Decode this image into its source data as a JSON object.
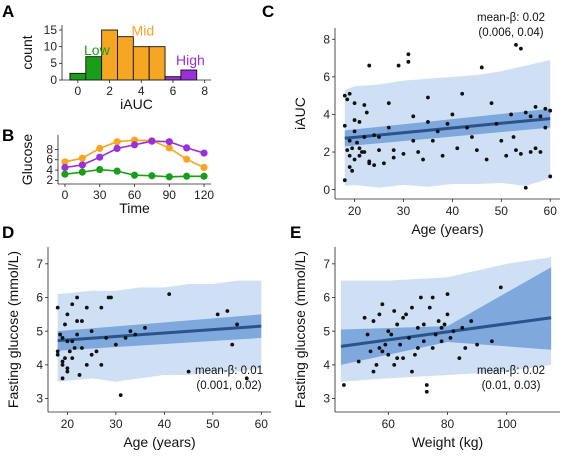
{
  "colors": {
    "low": "#1a9e1a",
    "mid": "#f5a623",
    "high": "#9b30d9",
    "ci_inner": "#7fa8dc",
    "pi_outer": "#cfe0f4",
    "fit": "#2c528a",
    "point": "#111111"
  },
  "chart_data": [
    {
      "panel": "A",
      "type": "bar",
      "xlabel": "iAUC",
      "ylabel": "count",
      "xlim": [
        -1,
        8.4
      ],
      "ylim": [
        0,
        16.5
      ],
      "xticks": [
        0,
        2,
        4,
        6,
        8
      ],
      "yticks": [
        0,
        5,
        10,
        15
      ],
      "group_labels": [
        {
          "text": "Low",
          "color_key": "low",
          "x": 1.2,
          "y": 7.5
        },
        {
          "text": "Mid",
          "color_key": "mid",
          "x": 4.1,
          "y": 13.3
        },
        {
          "text": "High",
          "color_key": "high",
          "x": 7.1,
          "y": 4.5
        }
      ],
      "bars": [
        {
          "x0": -0.5,
          "x1": 0.5,
          "value": 2,
          "group": "low"
        },
        {
          "x0": 0.5,
          "x1": 1.5,
          "value": 7,
          "group": "low"
        },
        {
          "x0": 1.5,
          "x1": 2.5,
          "value": 15,
          "group": "mid"
        },
        {
          "x0": 2.5,
          "x1": 3.5,
          "value": 13,
          "group": "mid"
        },
        {
          "x0": 3.5,
          "x1": 4.5,
          "value": 10,
          "group": "mid"
        },
        {
          "x0": 4.5,
          "x1": 5.5,
          "value": 10,
          "group": "mid"
        },
        {
          "x0": 5.5,
          "x1": 6.5,
          "value": 1,
          "group": "high"
        },
        {
          "x0": 6.5,
          "x1": 7.5,
          "value": 3,
          "group": "high"
        }
      ]
    },
    {
      "panel": "B",
      "type": "line",
      "xlabel": "Time",
      "ylabel": "Glucose",
      "xlim": [
        -6,
        126
      ],
      "ylim": [
        1.3,
        10.8
      ],
      "xticks": [
        0,
        30,
        60,
        90,
        120
      ],
      "yticks": [
        2,
        4,
        6,
        8
      ],
      "series": [
        {
          "color_key": "mid",
          "x": [
            0,
            15,
            30,
            45,
            60,
            75,
            90,
            105,
            120
          ],
          "y": [
            5.6,
            6.3,
            8.2,
            9.5,
            9.8,
            9.7,
            8.3,
            6.1,
            4.5
          ]
        },
        {
          "color_key": "high",
          "x": [
            0,
            15,
            30,
            45,
            60,
            75,
            90,
            105,
            120
          ],
          "y": [
            4.5,
            5.0,
            6.5,
            8.2,
            8.9,
            9.6,
            9.5,
            8.3,
            7.3
          ]
        },
        {
          "color_key": "low",
          "x": [
            0,
            15,
            30,
            45,
            60,
            75,
            90,
            105,
            120
          ],
          "y": [
            3.2,
            3.6,
            4.1,
            3.8,
            3.0,
            2.9,
            2.7,
            2.8,
            2.8
          ]
        }
      ]
    },
    {
      "panel": "C",
      "type": "scatter",
      "xlabel": "Age (years)",
      "ylabel": "iAUC",
      "xlim": [
        16,
        62
      ],
      "ylim": [
        -0.5,
        8.6
      ],
      "xticks": [
        20,
        30,
        40,
        50,
        60
      ],
      "yticks": [
        0,
        2,
        4,
        6,
        8
      ],
      "annotation": [
        "mean-β: 0.02",
        "(0.006, 0.04)"
      ],
      "fit": {
        "x": [
          18,
          60
        ],
        "y": [
          2.73,
          3.78
        ]
      },
      "ci": {
        "x": [
          18,
          60
        ],
        "lower": [
          2.3,
          3.3
        ],
        "upper": [
          3.15,
          4.3
        ]
      },
      "pi": {
        "x": [
          18,
          20,
          25,
          30,
          35,
          40,
          45,
          50,
          55,
          60
        ],
        "lower": [
          0.2,
          0.25,
          0.1,
          0.25,
          0.15,
          0.3,
          0.3,
          0.35,
          0.2,
          0.6
        ],
        "upper": [
          5.3,
          5.5,
          5.6,
          5.8,
          5.9,
          6.0,
          6.1,
          6.3,
          6.6,
          6.9
        ]
      },
      "points": {
        "x": [
          18,
          18,
          18.5,
          18.5,
          19,
          19,
          19,
          19.5,
          19.5,
          20,
          20,
          20,
          20.5,
          21,
          21,
          21.5,
          22,
          22,
          22.5,
          23,
          23,
          24,
          24,
          25,
          25,
          26,
          27,
          27,
          28,
          28,
          29,
          30,
          31,
          31,
          32,
          32,
          33,
          34,
          35,
          35,
          36,
          37,
          38,
          39,
          40,
          41,
          42,
          43,
          44,
          45,
          46,
          47,
          48,
          49,
          50,
          51,
          52,
          52.5,
          53,
          53,
          54,
          54,
          55,
          55,
          56,
          56,
          57,
          57,
          58,
          58,
          59,
          59,
          60,
          60,
          18,
          19,
          20,
          21,
          22,
          23
        ],
        "y": [
          5.0,
          3.4,
          2.1,
          4.8,
          1.8,
          2.6,
          5.1,
          1.0,
          2.2,
          1.6,
          3.1,
          4.6,
          2.5,
          3.6,
          1.8,
          2.0,
          4.5,
          2.8,
          4.1,
          6.6,
          1.4,
          2.9,
          1.3,
          2.8,
          2.1,
          1.4,
          4.6,
          3.3,
          1.7,
          2.1,
          6.6,
          1.9,
          7.2,
          6.8,
          2.6,
          3.9,
          2.0,
          1.6,
          3.6,
          4.9,
          2.6,
          3.1,
          1.8,
          3.5,
          4.0,
          2.2,
          5.1,
          3.3,
          2.8,
          2.1,
          6.5,
          1.6,
          4.6,
          3.5,
          2.6,
          1.8,
          4.0,
          2.8,
          2.1,
          7.7,
          7.5,
          1.9,
          4.1,
          0.1,
          3.9,
          2.0,
          2.2,
          4.4,
          3.9,
          2.0,
          4.3,
          3.3,
          4.2,
          0.7,
          0.5,
          1.2,
          3.7,
          2.2,
          2.0,
          1.5
        ]
      }
    },
    {
      "panel": "D",
      "type": "scatter",
      "xlabel": "Age (years)",
      "ylabel": "Fasting glucose (mmol/L)",
      "xlim": [
        16,
        62
      ],
      "ylim": [
        2.6,
        7.5
      ],
      "xticks": [
        20,
        30,
        40,
        50,
        60
      ],
      "yticks": [
        3,
        4,
        5,
        6,
        7
      ],
      "annotation": [
        "mean-β: 0.01",
        "(0.001, 0.02)"
      ],
      "fit": {
        "x": [
          18,
          60
        ],
        "y": [
          4.72,
          5.15
        ]
      },
      "ci": {
        "x": [
          18,
          60
        ],
        "lower": [
          4.42,
          4.8
        ],
        "upper": [
          5.0,
          5.5
        ]
      },
      "pi": {
        "x": [
          18,
          25,
          30,
          35,
          40,
          45,
          50,
          55,
          60
        ],
        "lower": [
          3.5,
          3.6,
          3.5,
          3.6,
          3.7,
          3.7,
          3.8,
          3.8,
          3.9
        ],
        "upper": [
          6.1,
          6.2,
          6.2,
          6.3,
          6.3,
          6.4,
          6.4,
          6.5,
          6.5
        ]
      },
      "points": {
        "x": [
          18,
          18,
          18.5,
          19,
          19,
          19,
          19.5,
          19.5,
          20,
          20,
          20,
          20.5,
          21,
          21,
          21.5,
          22,
          22,
          22.5,
          23,
          23,
          24,
          24,
          25,
          25,
          26,
          27,
          27,
          28,
          28.5,
          29,
          30,
          31,
          32,
          33,
          34,
          36,
          41,
          45,
          51,
          53,
          54,
          55,
          57,
          18,
          19,
          20,
          21,
          22
        ],
        "y": [
          4.4,
          5.7,
          4.9,
          4.0,
          3.6,
          4.8,
          5.2,
          4.2,
          5.5,
          4.7,
          3.8,
          4.4,
          5.8,
          4.2,
          4.5,
          6.0,
          4.9,
          3.7,
          5.3,
          4.5,
          4.0,
          5.7,
          4.3,
          5.0,
          4.4,
          5.7,
          4.0,
          4.8,
          6.0,
          6.0,
          4.6,
          3.1,
          4.8,
          5.0,
          4.9,
          5.1,
          6.1,
          3.8,
          5.5,
          5.6,
          4.6,
          5.2,
          3.6,
          4.3,
          4.1,
          3.9,
          4.7,
          5.3
        ]
      }
    },
    {
      "panel": "E",
      "type": "scatter",
      "xlabel": "Weight (kg)",
      "ylabel": "Fasting glucose (mmol/L)",
      "xlim": [
        42,
        118
      ],
      "ylim": [
        2.6,
        7.5
      ],
      "xticks": [
        60,
        80,
        100
      ],
      "yticks": [
        3,
        4,
        5,
        6,
        7
      ],
      "annotation": [
        "mean-β: 0.02",
        "(0.01, 0.03)"
      ],
      "fit": {
        "x": [
          44,
          115
        ],
        "y": [
          4.55,
          5.4
        ]
      },
      "ci": {
        "x": [
          44,
          80,
          115
        ],
        "lower": [
          4.0,
          4.68,
          4.45
        ],
        "upper": [
          5.05,
          5.15,
          6.9
        ]
      },
      "pi": {
        "x": [
          44,
          60,
          80,
          100,
          115
        ],
        "lower": [
          3.5,
          3.6,
          3.7,
          3.8,
          4.0
        ],
        "upper": [
          6.5,
          6.5,
          6.6,
          7.0,
          7.2
        ]
      },
      "points": {
        "x": [
          45,
          50,
          52,
          53,
          54,
          55,
          55,
          56,
          57,
          58,
          58,
          59,
          60,
          60,
          61,
          62,
          62,
          63,
          64,
          65,
          65,
          66,
          67,
          68,
          68,
          69,
          70,
          70,
          71,
          72,
          72,
          73,
          74,
          75,
          75,
          76,
          77,
          78,
          78,
          80,
          80,
          81,
          82,
          84,
          85,
          86,
          88,
          90,
          95,
          98,
          57,
          63,
          73,
          79
        ],
        "y": [
          3.4,
          4.1,
          5.4,
          4.9,
          4.4,
          5.3,
          3.8,
          4.0,
          5.5,
          4.4,
          5.8,
          4.6,
          5.0,
          4.3,
          4.9,
          4.0,
          5.6,
          5.2,
          4.6,
          5.4,
          4.2,
          5.5,
          4.8,
          3.8,
          5.7,
          4.3,
          5.1,
          4.5,
          6.0,
          4.7,
          5.2,
          3.4,
          5.7,
          6.0,
          4.5,
          4.9,
          5.3,
          5.1,
          4.7,
          6.1,
          5.5,
          4.8,
          5.0,
          4.2,
          5.1,
          4.5,
          5.3,
          4.6,
          4.7,
          6.3,
          4.5,
          4.2,
          3.2,
          5.2
        ]
      }
    }
  ]
}
